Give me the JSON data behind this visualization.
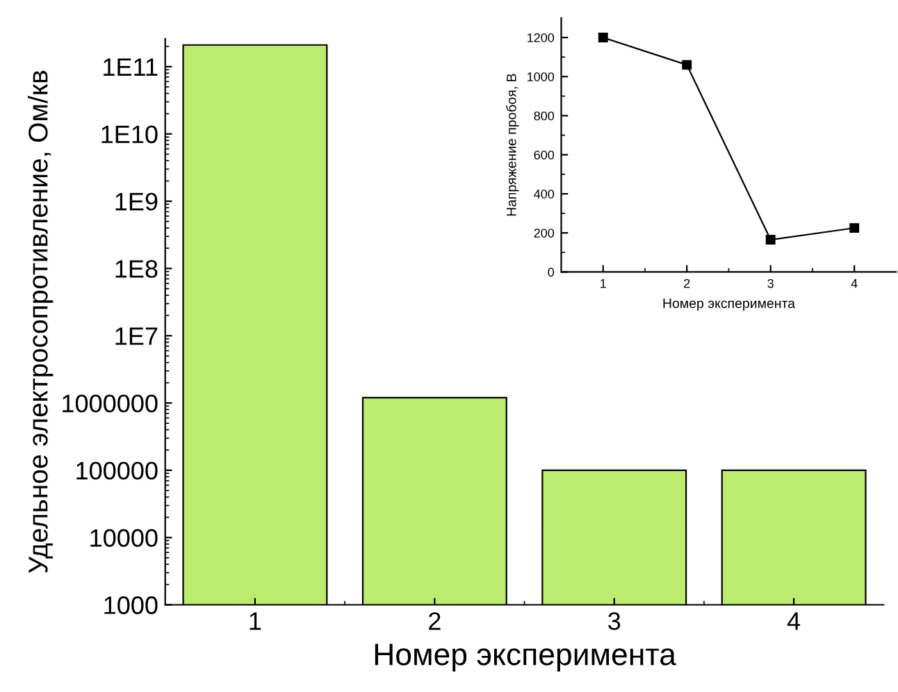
{
  "chart_data": [
    {
      "type": "bar",
      "xlabel": "Номер эксперимента",
      "ylabel": "Удельное электросопротивление, Ом/кв",
      "categories": [
        "1",
        "2",
        "3",
        "4"
      ],
      "values": [
        210000000000.0,
        1200000.0,
        100000.0,
        100000.0
      ],
      "color": "#bbec6f",
      "log": true,
      "ylim": [
        1000,
        260000000000.0
      ],
      "yticks": [
        1000,
        10000,
        100000,
        1000000,
        {
          "value": 10000000.0,
          "label": "1E7"
        },
        {
          "value": 100000000.0,
          "label": "1E8"
        },
        {
          "value": 1000000000.0,
          "label": "1E9"
        },
        {
          "value": 10000000000.0,
          "label": "1E10"
        },
        {
          "value": 100000000000.0,
          "label": "1E11"
        }
      ],
      "grid": false
    },
    {
      "type": "line",
      "xlabel": "Номер эксперимента",
      "ylabel": "Напряжение пробоя, В",
      "x": [
        1,
        2,
        3,
        4
      ],
      "values": [
        1200,
        1060,
        165,
        225
      ],
      "color": "#000000",
      "marker": "square",
      "line_style": "solid",
      "xlim": [
        0.5,
        4.5
      ],
      "xticks": [
        1,
        2,
        3,
        4
      ],
      "ylim": [
        0,
        1300
      ],
      "yticks": [
        0,
        200,
        400,
        600,
        800,
        1000,
        1200
      ],
      "grid": false
    }
  ]
}
